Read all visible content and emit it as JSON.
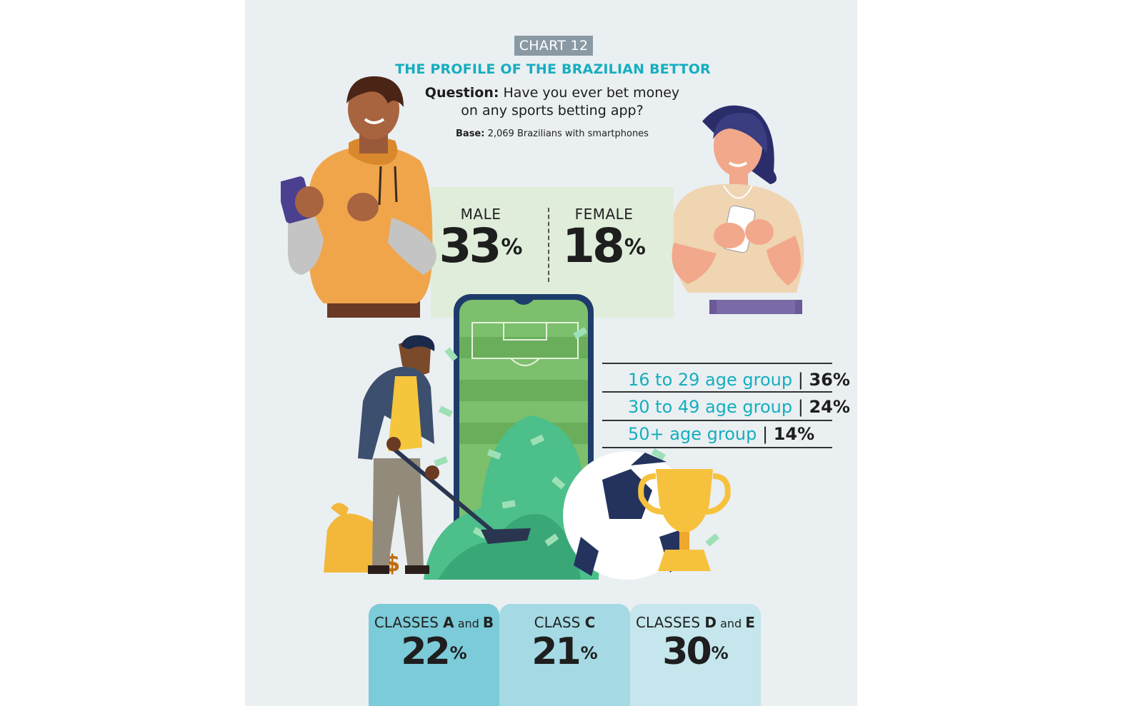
{
  "header": {
    "chart_tag": "CHART 12",
    "title": "THE PROFILE OF THE BRAZILIAN BETTOR",
    "question_label": "Question:",
    "question_line1": "Have you ever bet money",
    "question_line2": "on any sports betting app?",
    "base_label": "Base:",
    "base_text": "2,069 Brazilians with smartphones"
  },
  "gender": [
    {
      "label": "MALE",
      "value": "33",
      "unit": "%"
    },
    {
      "label": "FEMALE",
      "value": "18",
      "unit": "%"
    }
  ],
  "age_groups": [
    {
      "label": "16 to 29 age group",
      "sep": "|",
      "value": "36%"
    },
    {
      "label": "30 to 49 age group",
      "sep": "|",
      "value": "24%"
    },
    {
      "label": "50+ age group",
      "sep": "|",
      "value": "14%"
    }
  ],
  "classes": [
    {
      "prefix": "CLASSES ",
      "a": "A",
      "and": " and ",
      "b": "B",
      "value": "22",
      "unit": "%",
      "color": "#7ccbd9"
    },
    {
      "prefix": "CLASS ",
      "a": "C",
      "and": "",
      "b": "",
      "value": "21",
      "unit": "%",
      "color": "#a5dae4"
    },
    {
      "prefix": "CLASSES ",
      "a": "D",
      "and": " and ",
      "b": "E",
      "value": "30",
      "unit": "%",
      "color": "#c4e6ec"
    }
  ],
  "illustration_icons": [
    "man-with-phone-icon",
    "woman-with-phone-icon",
    "smartphone-football-field-icon",
    "man-shoveling-money-icon",
    "money-bag-icon",
    "soccer-ball-icon",
    "trophy-icon"
  ]
}
